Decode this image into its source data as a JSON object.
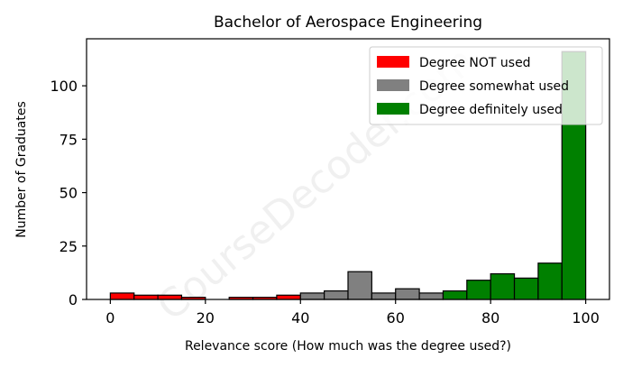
{
  "chart_data": {
    "type": "bar",
    "title": "Bachelor of Aerospace Engineering",
    "xlabel": "Relevance score (How much was the degree used?)",
    "ylabel": "Number of Graduates",
    "xlim": [
      -5,
      105
    ],
    "ylim": [
      0,
      122
    ],
    "xticks": [
      0,
      20,
      40,
      60,
      80,
      100
    ],
    "yticks": [
      0,
      25,
      50,
      75,
      100
    ],
    "bin_width": 5,
    "grid": false,
    "legend_position": "top-right",
    "bins": [
      {
        "start": 0,
        "value": 3,
        "group": "not"
      },
      {
        "start": 5,
        "value": 2,
        "group": "not"
      },
      {
        "start": 10,
        "value": 2,
        "group": "not"
      },
      {
        "start": 15,
        "value": 1,
        "group": "not"
      },
      {
        "start": 20,
        "value": 0,
        "group": "not"
      },
      {
        "start": 25,
        "value": 1,
        "group": "not"
      },
      {
        "start": 30,
        "value": 1,
        "group": "not"
      },
      {
        "start": 35,
        "value": 2,
        "group": "not"
      },
      {
        "start": 40,
        "value": 3,
        "group": "somewhat"
      },
      {
        "start": 45,
        "value": 4,
        "group": "somewhat"
      },
      {
        "start": 50,
        "value": 13,
        "group": "somewhat"
      },
      {
        "start": 55,
        "value": 3,
        "group": "somewhat"
      },
      {
        "start": 60,
        "value": 5,
        "group": "somewhat"
      },
      {
        "start": 65,
        "value": 3,
        "group": "somewhat"
      },
      {
        "start": 70,
        "value": 4,
        "group": "definitely"
      },
      {
        "start": 75,
        "value": 9,
        "group": "definitely"
      },
      {
        "start": 80,
        "value": 12,
        "group": "definitely"
      },
      {
        "start": 85,
        "value": 10,
        "group": "definitely"
      },
      {
        "start": 90,
        "value": 17,
        "group": "definitely"
      },
      {
        "start": 95,
        "value": 116,
        "group": "definitely"
      }
    ],
    "legend": [
      {
        "key": "not",
        "label": "Degree NOT used",
        "color": "#ff0000"
      },
      {
        "key": "somewhat",
        "label": "Degree somewhat used",
        "color": "#808080"
      },
      {
        "key": "definitely",
        "label": "Degree definitely used",
        "color": "#008000"
      }
    ],
    "watermark": "CourseDecoder.com"
  }
}
